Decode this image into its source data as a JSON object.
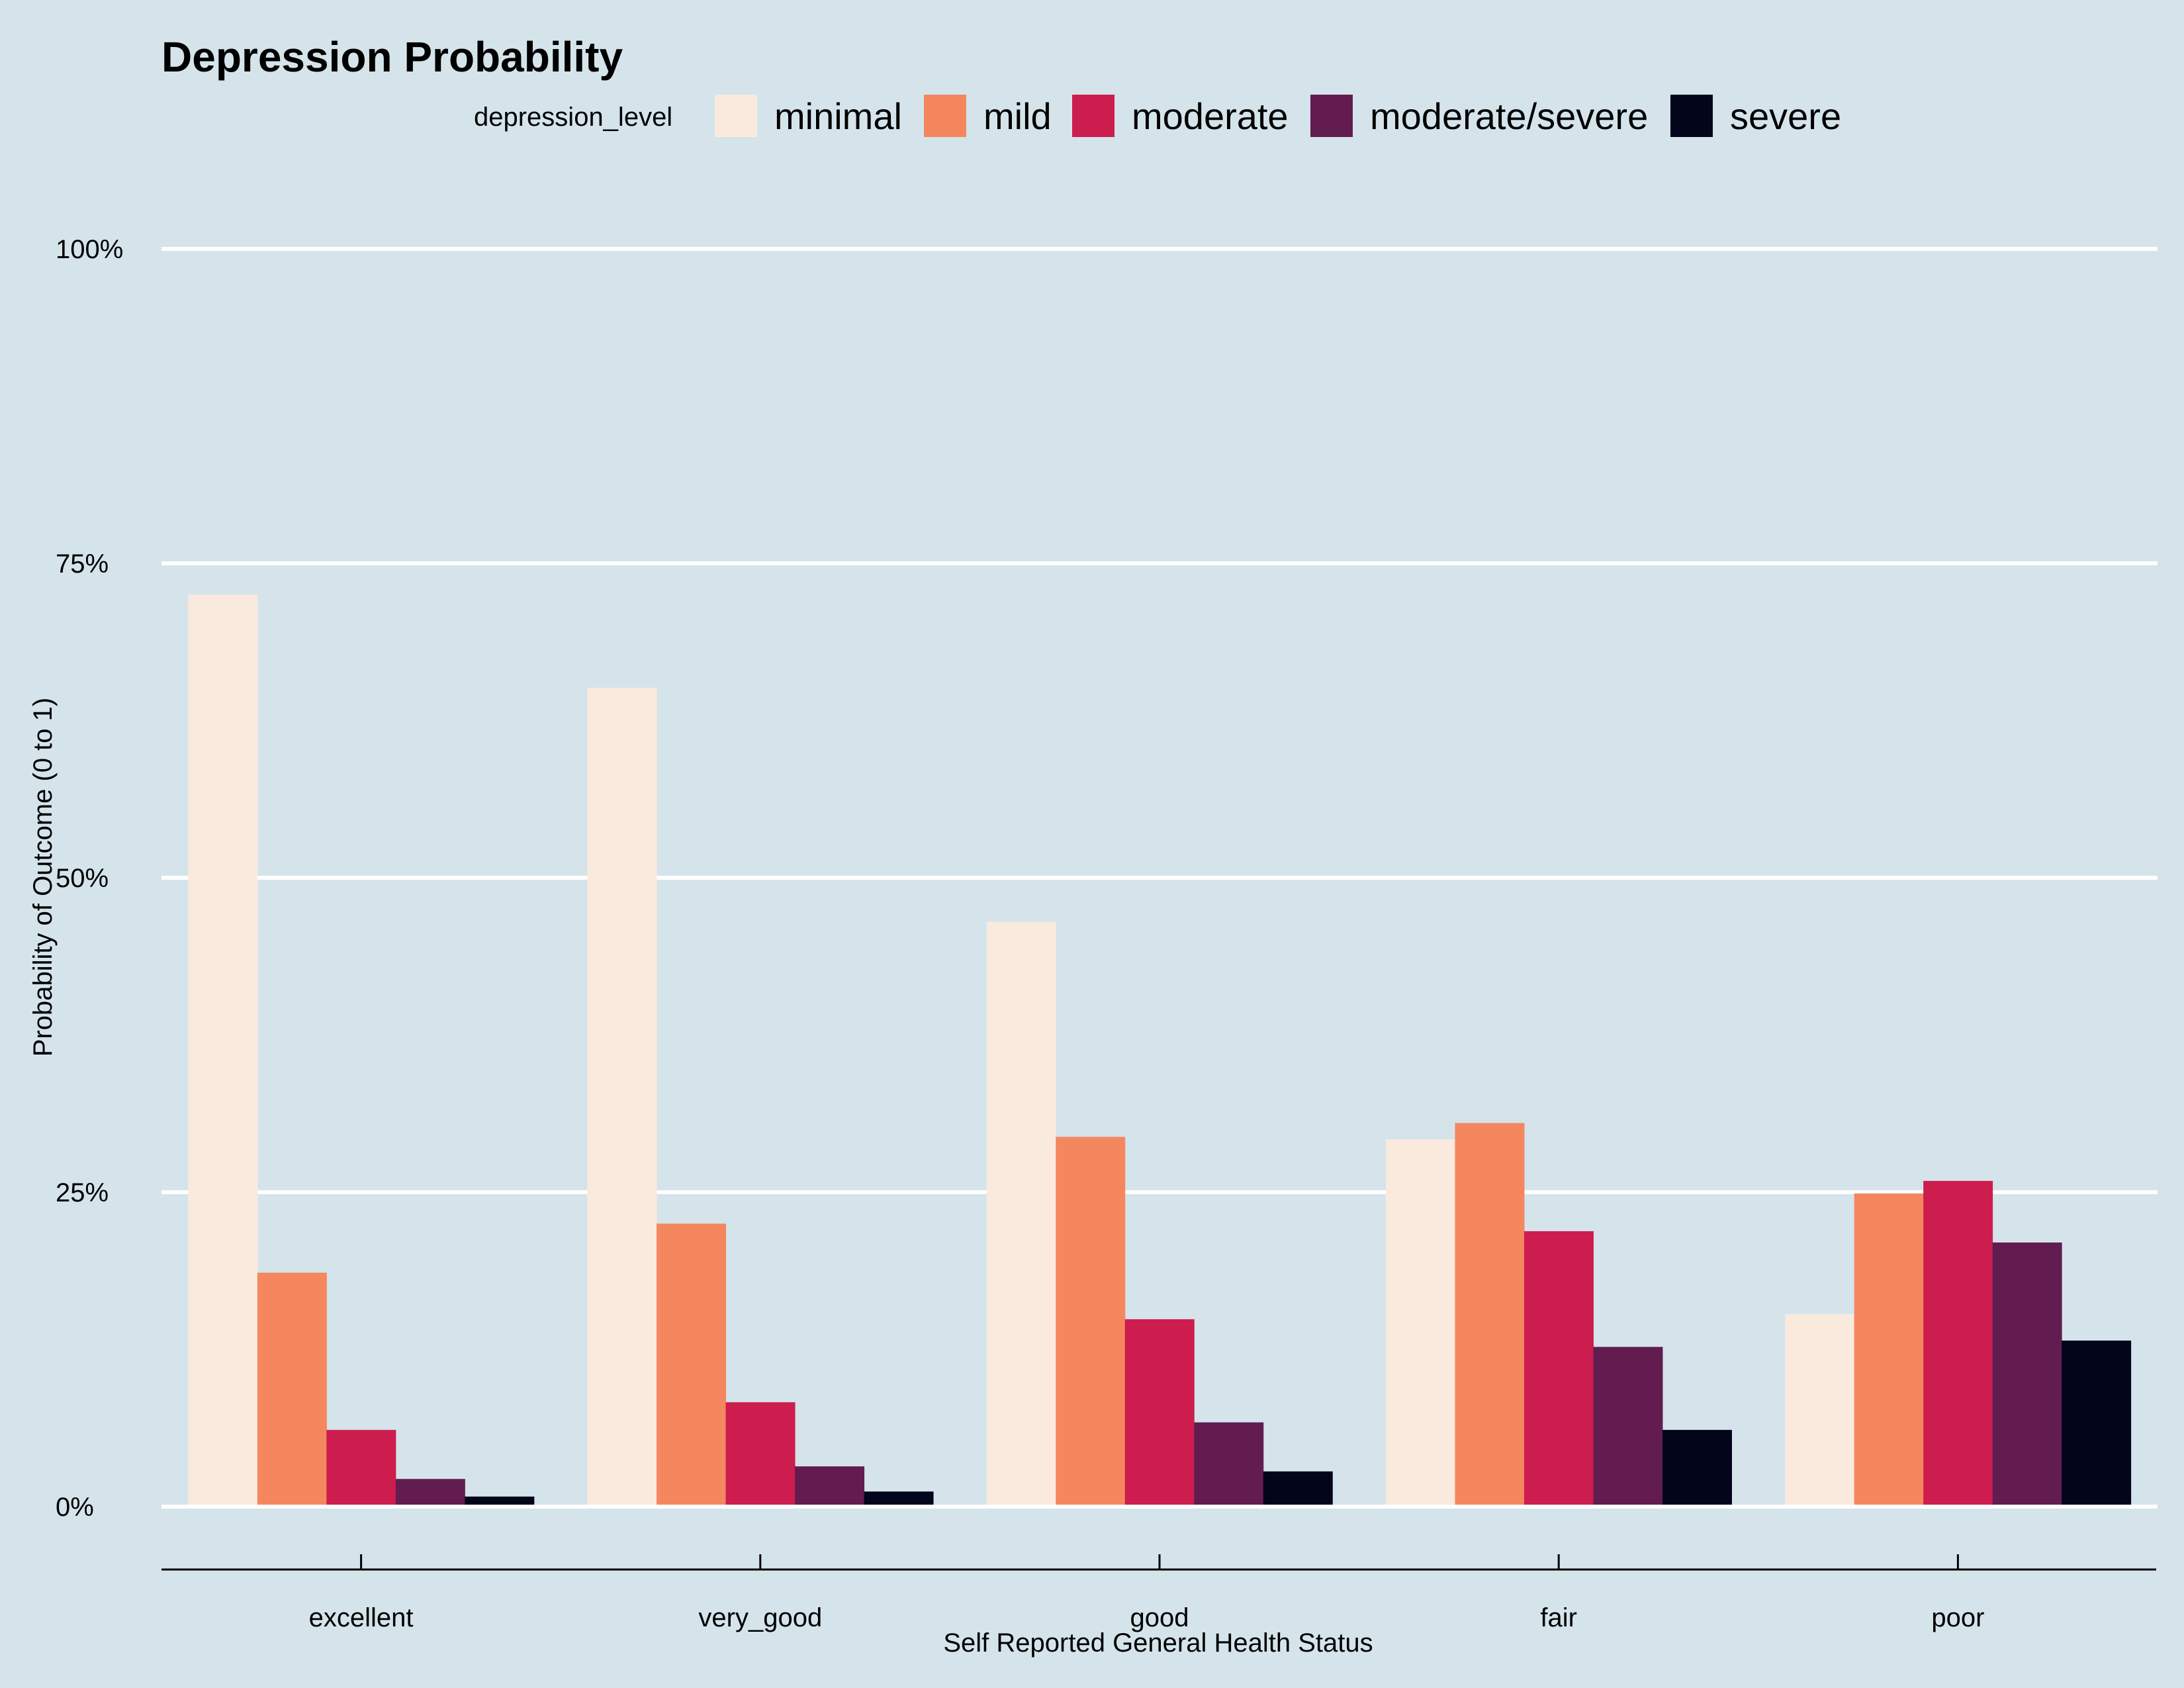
{
  "chart_data": {
    "type": "bar",
    "title": "Depression Probability",
    "xlabel": "Self Reported General Health Status",
    "ylabel": "Probability of Outcome (0 to 1)",
    "ylim": [
      0,
      1
    ],
    "yticks": [
      0,
      0.25,
      0.5,
      0.75,
      1.0
    ],
    "ytick_labels": [
      "0%",
      "25%",
      "50%",
      "75%",
      "100%"
    ],
    "grid": true,
    "legend": {
      "title": "depression_level",
      "placement": "top"
    },
    "categories": [
      "excellent",
      "very_good",
      "good",
      "fair",
      "poor"
    ],
    "series": [
      {
        "name": "minimal",
        "color": "#faeade",
        "values": [
          0.725,
          0.651,
          0.465,
          0.292,
          0.153
        ]
      },
      {
        "name": "mild",
        "color": "#f5875f",
        "values": [
          0.186,
          0.225,
          0.294,
          0.305,
          0.249
        ]
      },
      {
        "name": "moderate",
        "color": "#cd1d4e",
        "values": [
          0.061,
          0.083,
          0.149,
          0.219,
          0.259
        ]
      },
      {
        "name": "moderate/severe",
        "color": "#621c50",
        "values": [
          0.022,
          0.032,
          0.067,
          0.127,
          0.21
        ]
      },
      {
        "name": "severe",
        "color": "#03051a",
        "values": [
          0.008,
          0.012,
          0.028,
          0.061,
          0.132
        ]
      }
    ]
  }
}
